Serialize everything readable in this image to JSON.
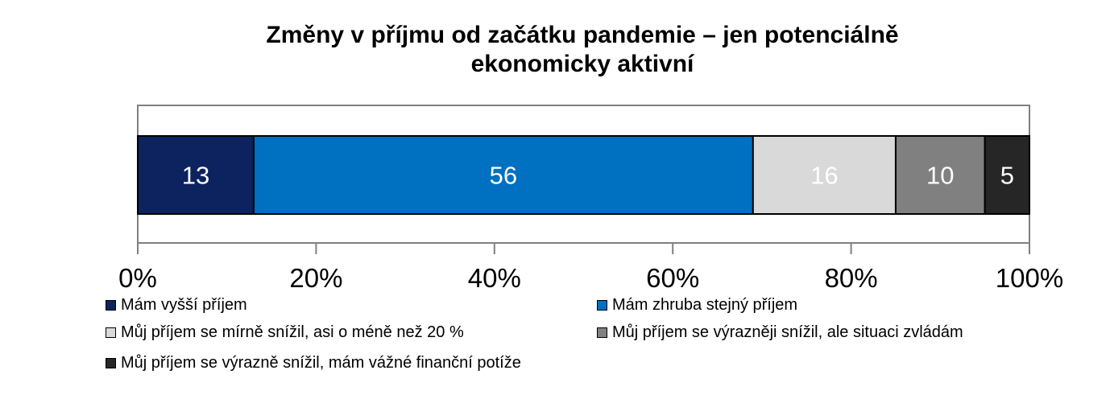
{
  "chart_data": {
    "type": "bar",
    "orientation": "horizontal",
    "stacked": true,
    "title_lines": [
      "Změny v příjmu od začátku pandemie – jen potenciálně",
      "ekonomicky aktivní"
    ],
    "xlim": [
      0,
      100
    ],
    "x_ticks": [
      "0%",
      "20%",
      "40%",
      "60%",
      "80%",
      "100%"
    ],
    "grid": false,
    "legend_position": "bottom",
    "series": [
      {
        "name": "Mám vyšší příjem",
        "value": 13,
        "label": "13",
        "color": "#0d2360",
        "label_color": "#ffffff"
      },
      {
        "name": "Mám zhruba stejný příjem",
        "value": 56,
        "label": "56",
        "color": "#0070c0",
        "label_color": "#ffffff"
      },
      {
        "name": "Můj příjem se mírně snížil, asi o méně než 20 %",
        "value": 16,
        "label": "16",
        "color": "#d9d9d9",
        "label_color": "#ffffff"
      },
      {
        "name": "Můj příjem se výrazněji snížil, ale situaci zvládám",
        "value": 10,
        "label": "10",
        "color": "#808080",
        "label_color": "#ffffff"
      },
      {
        "name": "Můj příjem se výrazně snížil, mám vážné finanční potíže",
        "value": 5,
        "label": "5",
        "color": "#262626",
        "label_color": "#ffffff"
      }
    ]
  }
}
